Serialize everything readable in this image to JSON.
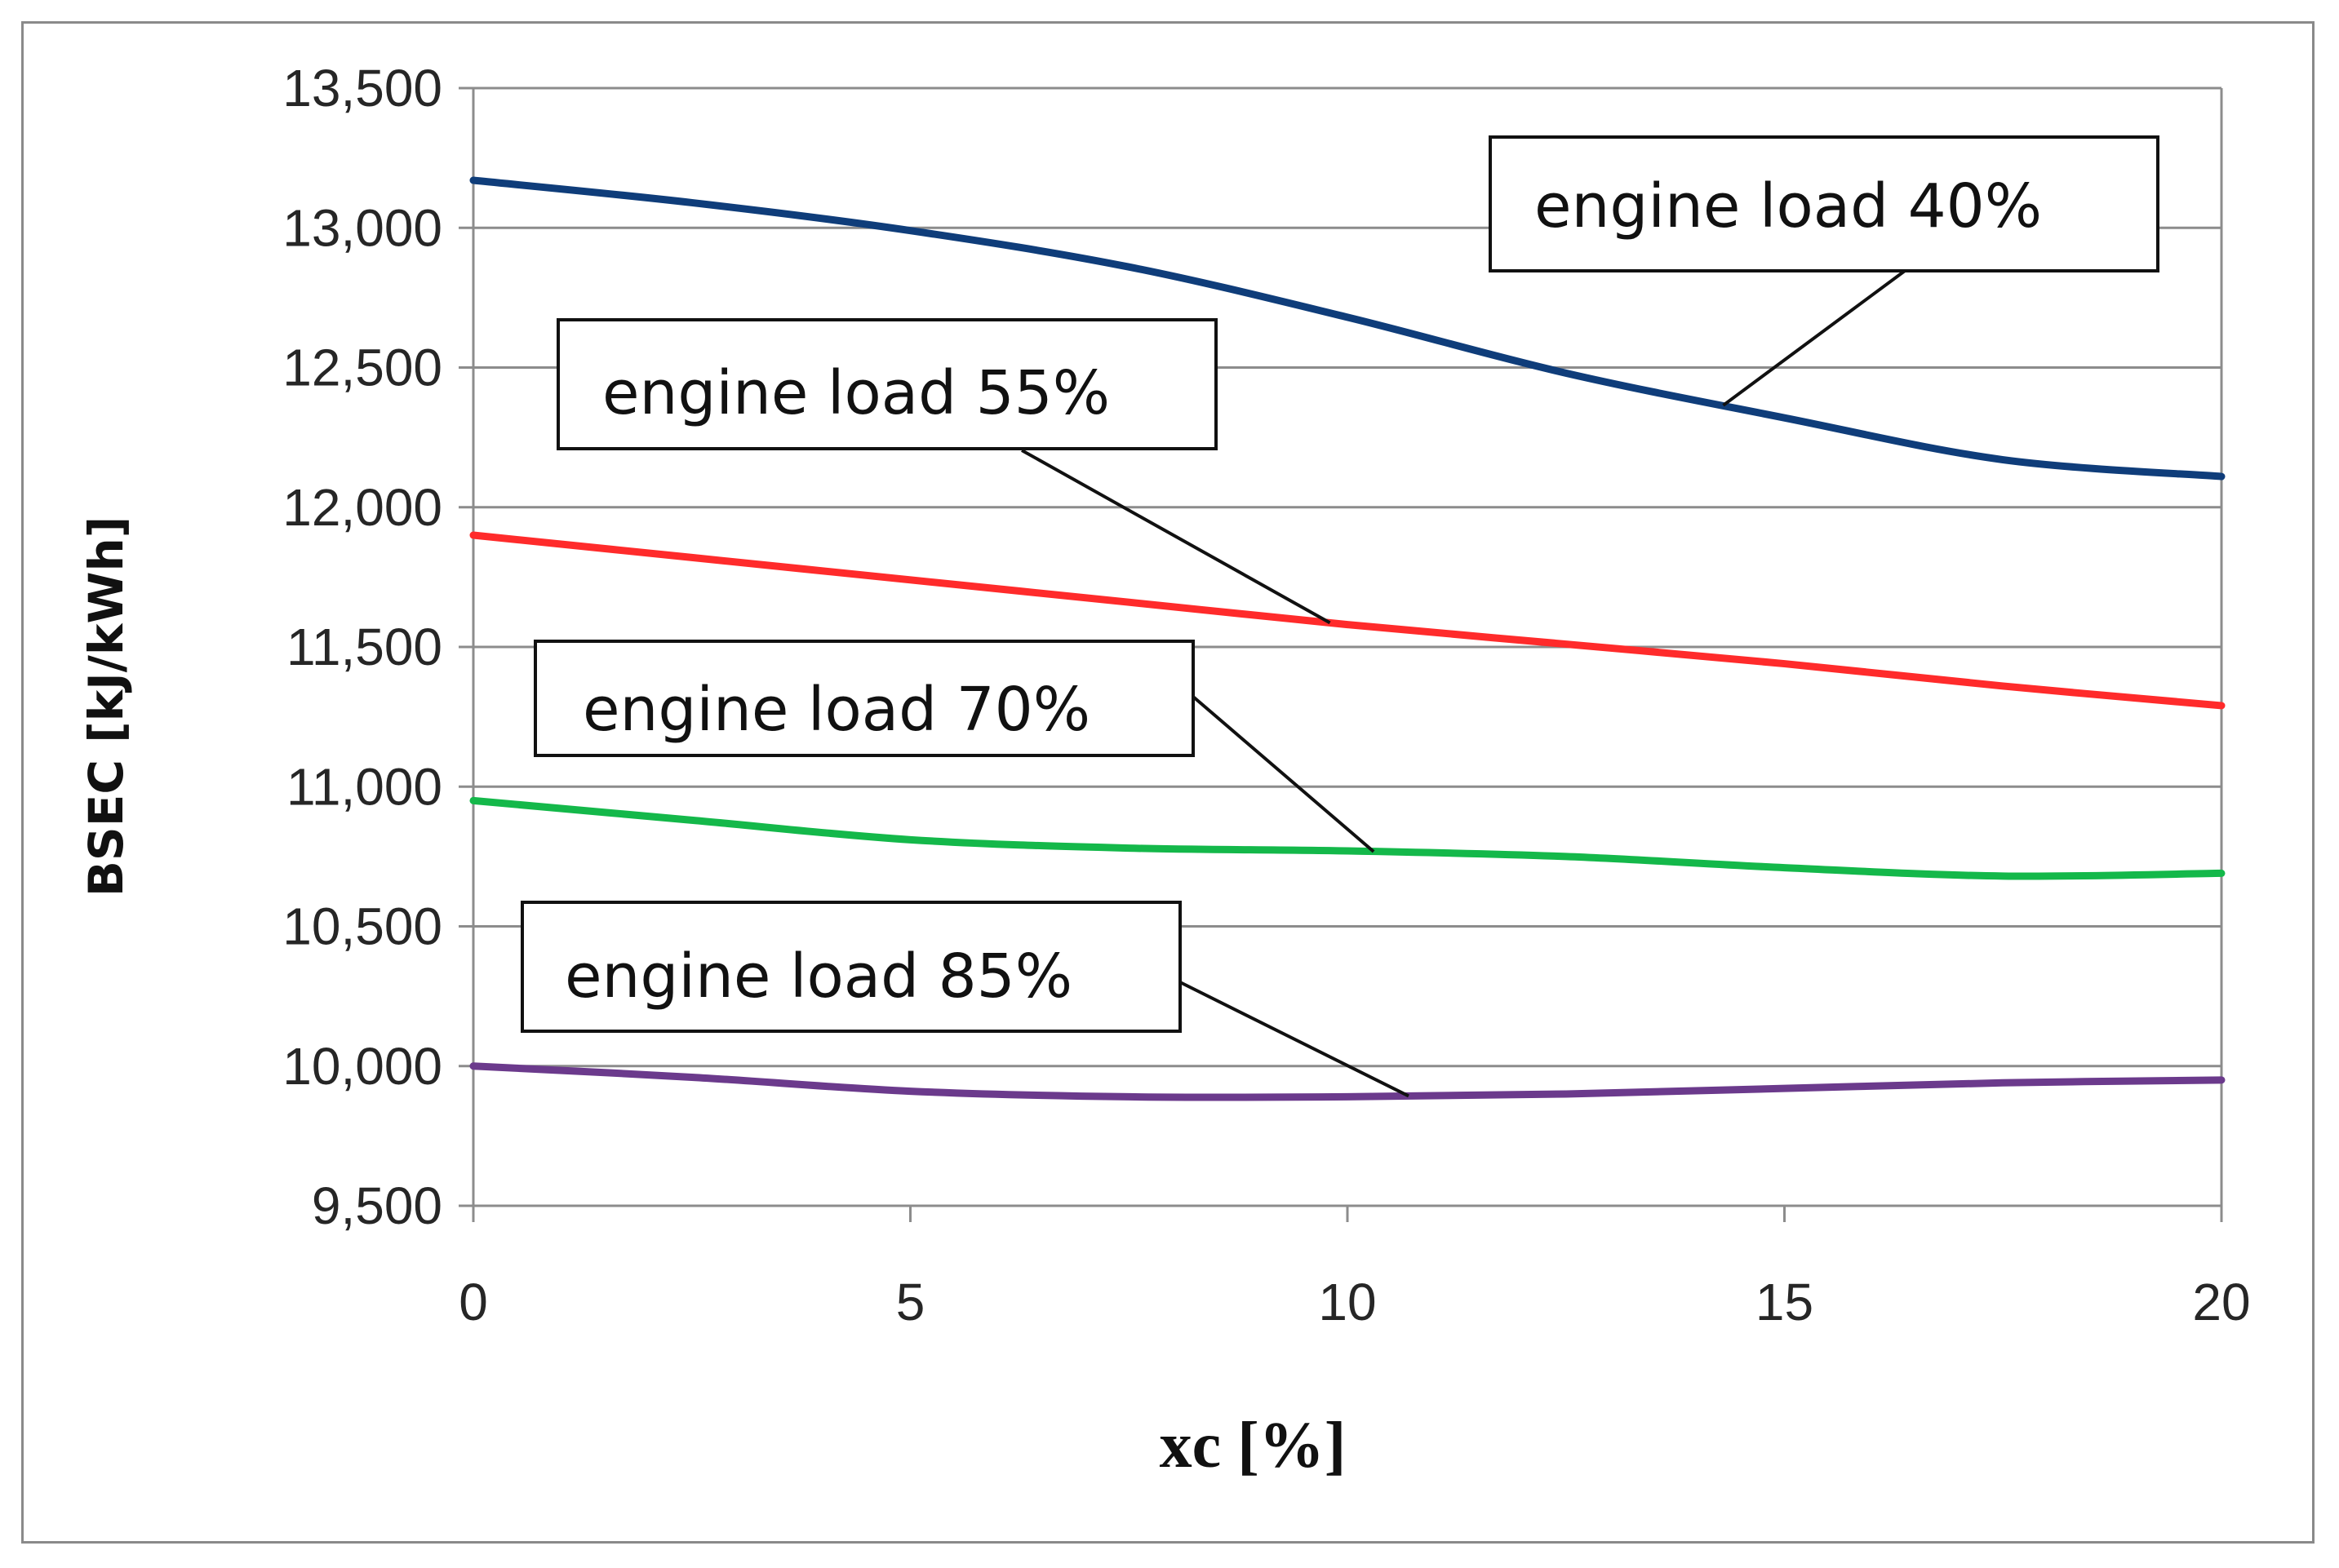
{
  "chart_data": {
    "type": "line",
    "title": "",
    "xlabel": "xc [%]",
    "ylabel": "BSEC [kJ/kWh]",
    "xlim": [
      0,
      20
    ],
    "ylim": [
      9500,
      13500
    ],
    "x_ticks": [
      0,
      5,
      10,
      15,
      20
    ],
    "y_ticks": [
      9500,
      10000,
      10500,
      11000,
      11500,
      12000,
      12500,
      13000,
      13500
    ],
    "x_tick_labels": [
      "0",
      "5",
      "10",
      "15",
      "20"
    ],
    "y_tick_labels": [
      "9,500",
      "10,000",
      "10,500",
      "11,000",
      "11,500",
      "12,000",
      "12,500",
      "13,000",
      "13,500"
    ],
    "grid": "horizontal",
    "x": [
      0,
      2.5,
      5,
      7.5,
      10,
      12.5,
      15,
      17.5,
      20
    ],
    "series": [
      {
        "name": "engine load 40%",
        "color": "#0f3d7a",
        "values": [
          13170,
          13090,
          12990,
          12860,
          12680,
          12480,
          12320,
          12170,
          12110
        ]
      },
      {
        "name": "engine load 55%",
        "color": "#ff2b2b",
        "values": [
          11900,
          11820,
          11740,
          11660,
          11580,
          11510,
          11440,
          11360,
          11290
        ]
      },
      {
        "name": "engine load 70%",
        "color": "#14b84a",
        "values": [
          10950,
          10880,
          10810,
          10780,
          10770,
          10750,
          10710,
          10680,
          10690
        ]
      },
      {
        "name": "engine load 85%",
        "color": "#6b3a8c",
        "values": [
          10000,
          9960,
          9910,
          9890,
          9890,
          9900,
          9920,
          9940,
          9950
        ]
      }
    ],
    "annotations": [
      {
        "text": "engine load 40%",
        "series": 0,
        "x": 14.3
      },
      {
        "text": "engine load 55%",
        "series": 1,
        "x": 9.8
      },
      {
        "text": "engine load 70%",
        "series": 2,
        "x": 10.3
      },
      {
        "text": "engine load 85%",
        "series": 3,
        "x": 10.7
      }
    ]
  }
}
